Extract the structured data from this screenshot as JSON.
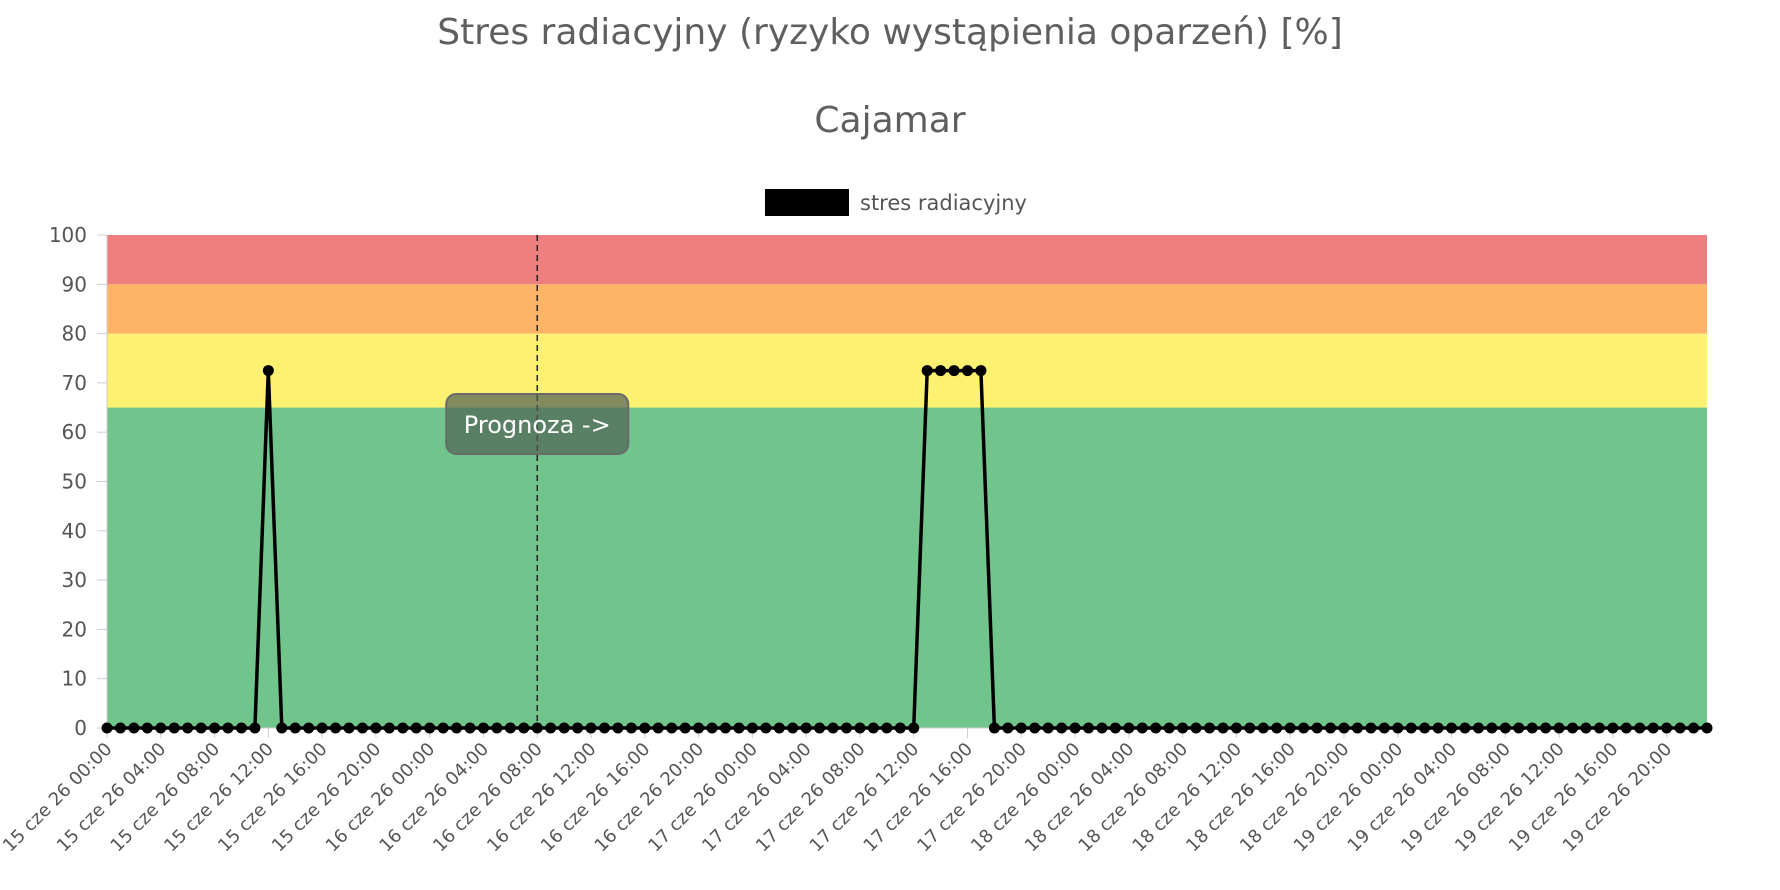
{
  "header": {
    "title": "Stres radiacyjny (ryzyko wystąpienia oparzeń) [%]",
    "subtitle": "Cajamar"
  },
  "forecast_label": "Prognoza ->",
  "chart_data": {
    "type": "line",
    "title": "Stres radiacyjny (ryzyko wystąpienia oparzeń) [%]",
    "subtitle": "Cajamar",
    "xlabel": "",
    "ylabel": "",
    "ylim": [
      0,
      100
    ],
    "yticks": [
      0,
      10,
      20,
      30,
      40,
      50,
      60,
      70,
      80,
      90,
      100
    ],
    "legend": {
      "position": "top",
      "entries": [
        "stres radiacyjny"
      ]
    },
    "x_tick_labels": [
      "15 cze 26 00:00",
      "15 cze 26 04:00",
      "15 cze 26 08:00",
      "15 cze 26 12:00",
      "15 cze 26 16:00",
      "15 cze 26 20:00",
      "16 cze 26 00:00",
      "16 cze 26 04:00",
      "16 cze 26 08:00",
      "16 cze 26 12:00",
      "16 cze 26 16:00",
      "16 cze 26 20:00",
      "17 cze 26 00:00",
      "17 cze 26 04:00",
      "17 cze 26 08:00",
      "17 cze 26 12:00",
      "17 cze 26 16:00",
      "17 cze 26 20:00",
      "18 cze 26 00:00",
      "18 cze 26 04:00",
      "18 cze 26 08:00",
      "18 cze 26 12:00",
      "18 cze 26 16:00",
      "18 cze 26 20:00",
      "19 cze 26 00:00",
      "19 cze 26 04:00",
      "19 cze 26 08:00",
      "19 cze 26 12:00",
      "19 cze 26 16:00",
      "19 cze 26 20:00"
    ],
    "x_start": "15 cze 26 00:00",
    "x_step": "1h",
    "forecast_start": "16 cze 26 08:00",
    "zones": [
      {
        "from": 0,
        "to": 65,
        "color": "#70c48c"
      },
      {
        "from": 65,
        "to": 80,
        "color": "#fdf172"
      },
      {
        "from": 80,
        "to": 90,
        "color": "#feb466"
      },
      {
        "from": 90,
        "to": 100,
        "color": "#ef7f7f"
      }
    ],
    "series": [
      {
        "name": "stres radiacyjny",
        "color": "#000000",
        "values": [
          0,
          0,
          0,
          0,
          0,
          0,
          0,
          0,
          0,
          0,
          0,
          0,
          72.5,
          0,
          0,
          0,
          0,
          0,
          0,
          0,
          0,
          0,
          0,
          0,
          0,
          0,
          0,
          0,
          0,
          0,
          0,
          0,
          0,
          0,
          0,
          0,
          0,
          0,
          0,
          0,
          0,
          0,
          0,
          0,
          0,
          0,
          0,
          0,
          0,
          0,
          0,
          0,
          0,
          0,
          0,
          0,
          0,
          0,
          0,
          0,
          0,
          72.5,
          72.5,
          72.5,
          72.5,
          72.5,
          0,
          0,
          0,
          0,
          0,
          0,
          0,
          0,
          0,
          0,
          0,
          0,
          0,
          0,
          0,
          0,
          0,
          0,
          0,
          0,
          0,
          0,
          0,
          0,
          0,
          0,
          0,
          0,
          0,
          0,
          0,
          0,
          0,
          0,
          0,
          0,
          0,
          0,
          0,
          0,
          0,
          0,
          0,
          0,
          0,
          0,
          0,
          0,
          0,
          0,
          0,
          0,
          0,
          0
        ]
      }
    ]
  }
}
